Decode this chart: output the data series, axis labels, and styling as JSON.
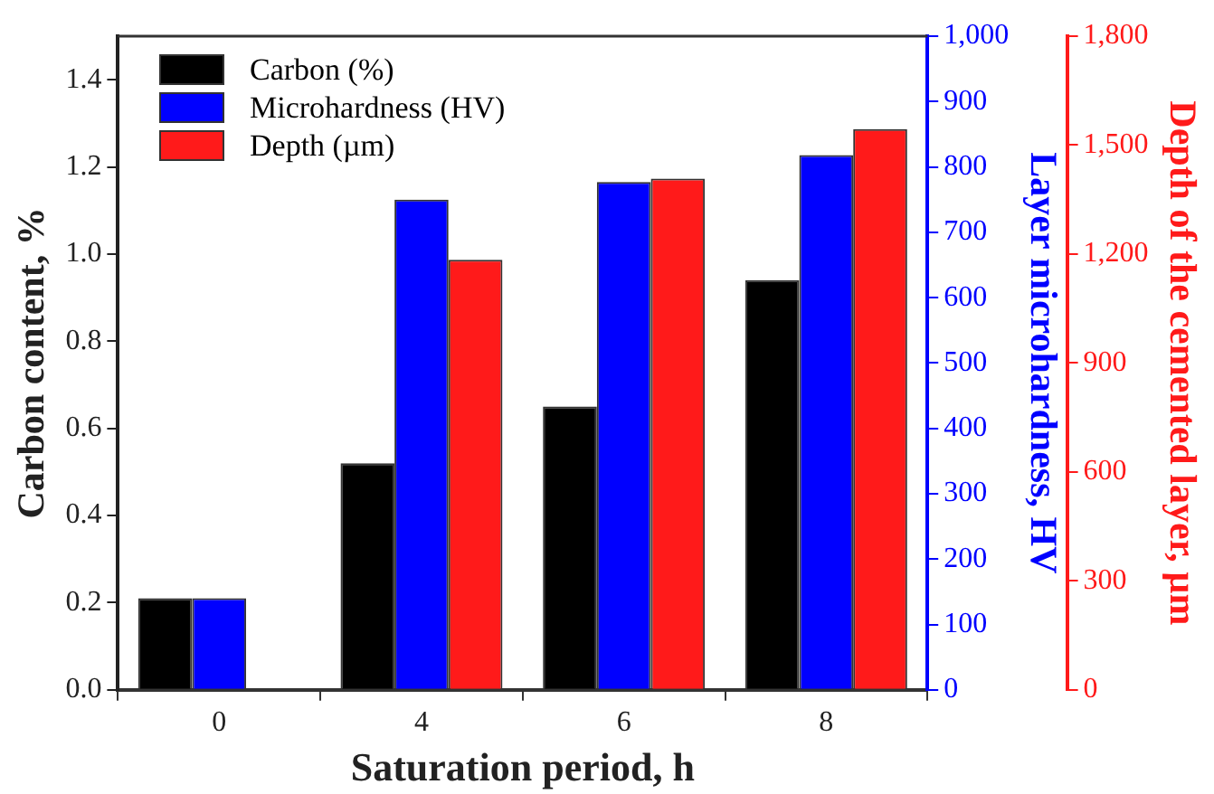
{
  "chart_data": {
    "type": "bar",
    "xlabel": "Saturation period, h",
    "ylabel": "Carbon content, %",
    "y2label": "Layer microhardness, HV",
    "y3label": "Depth of the cemented layer, µm",
    "categories": [
      "0",
      "4",
      "6",
      "8"
    ],
    "series": [
      {
        "name": "Carbon (%)",
        "color": "#000000",
        "values": [
          0.21,
          0.52,
          0.65,
          0.94
        ]
      },
      {
        "name": "Microhardness (HV)",
        "color": "#0000ff",
        "axis": "y2",
        "values": [
          140,
          750,
          777,
          818
        ]
      },
      {
        "name": "Depth (µm)",
        "color": "#ff1a1a",
        "axis": "y3",
        "values": [
          null,
          1184,
          1408,
          1544
        ]
      }
    ],
    "ylim": [
      0,
      1.5
    ],
    "yticks": [
      {
        "value": 0,
        "label": "0.0"
      },
      {
        "value": 0.2,
        "label": "0.2"
      },
      {
        "value": 0.4,
        "label": "0.4"
      },
      {
        "value": 0.6,
        "label": "0.6"
      },
      {
        "value": 0.8,
        "label": "0.8"
      },
      {
        "value": 1.0,
        "label": "1.0"
      },
      {
        "value": 1.2,
        "label": "1.2"
      },
      {
        "value": 1.4,
        "label": "1.4"
      }
    ],
    "y2lim": [
      0,
      1000
    ],
    "y2ticks": [
      0,
      100,
      200,
      300,
      400,
      500,
      600,
      700,
      800,
      900,
      {
        "value": 1000,
        "label": "1,000"
      }
    ],
    "y3lim": [
      0,
      1800
    ],
    "y3ticks": [
      0,
      300,
      600,
      900,
      {
        "value": 1200,
        "label": "1,200"
      },
      {
        "value": 1500,
        "label": "1,500"
      },
      {
        "value": 1800,
        "label": "1,800"
      }
    ],
    "grid": false,
    "legend": "top left"
  }
}
